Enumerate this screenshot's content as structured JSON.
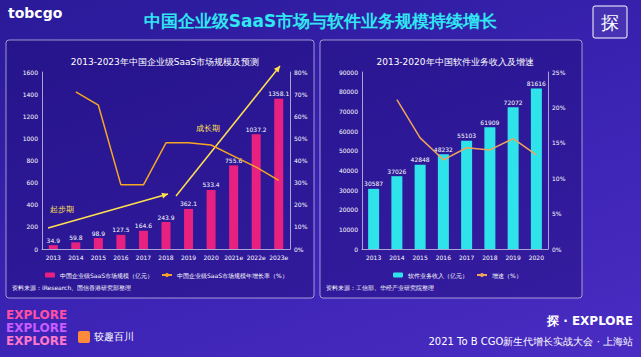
{
  "page": {
    "logo": "tobcgo",
    "title": "中国企业级SaaS市场与软件业务规模持续增长",
    "badge": "探",
    "footer_left": [
      "EXPLORE",
      "EXPLORE",
      "EXPLORE"
    ],
    "footer_brand": "较趣百川",
    "footer_right": [
      "探 · EXPLORE",
      "2021 To B CGO新生代增长实战大会 · 上海站"
    ]
  },
  "chart_data": [
    {
      "type": "bar",
      "title": "2013-2023年中国企业级SaaS市场规模及预测",
      "categories": [
        "2013",
        "2014",
        "2015",
        "2016",
        "2017",
        "2018",
        "2019",
        "2020",
        "2021e",
        "2022e",
        "2023e"
      ],
      "series": [
        {
          "name": "中国企业级SaaS市场规模（亿元）",
          "type": "bar",
          "color": "#e8207f",
          "data_labels": true,
          "values": [
            34.9,
            59.8,
            98.9,
            127.5,
            164.6,
            243.9,
            362.1,
            533.4,
            755.6,
            1037.2,
            1358.1
          ]
        },
        {
          "name": "中国企业级SaaS市场规模年增长率（%）",
          "type": "line",
          "axis": "y2",
          "color": "#f5a623",
          "marker": "none",
          "values": [
            null,
            71,
            65,
            29,
            29,
            48,
            48,
            47,
            42,
            37,
            31
          ]
        }
      ],
      "ylim": [
        0,
        1600
      ],
      "yticks": [
        0,
        200,
        400,
        600,
        800,
        1000,
        1200,
        1400,
        1600
      ],
      "y2lim": [
        0,
        80
      ],
      "y2ticks": [
        {
          "value": 0,
          "label": "0%"
        },
        {
          "value": 10,
          "label": "10%"
        },
        {
          "value": 20,
          "label": "20%"
        },
        {
          "value": 30,
          "label": "30%"
        },
        {
          "value": 40,
          "label": "40%"
        },
        {
          "value": 50,
          "label": "50%"
        },
        {
          "value": 60,
          "label": "60%"
        },
        {
          "value": 70,
          "label": "70%"
        },
        {
          "value": 80,
          "label": "80%"
        }
      ],
      "grid": false,
      "legend": "bottom",
      "annotations": [
        "起步期",
        "成长期"
      ],
      "source": "资料来源：iResearch、国信香港研究部整理"
    },
    {
      "type": "bar",
      "title": "2013-2020年中国软件业务收入及增速",
      "categories": [
        "2013",
        "2014",
        "2015",
        "2016",
        "2017",
        "2018",
        "2019",
        "2020"
      ],
      "series": [
        {
          "name": "软件业务收入（亿元）",
          "type": "bar",
          "color": "#2ee3ea",
          "data_labels": true,
          "values": [
            30587,
            37026,
            42848,
            48232,
            55103,
            61909,
            72072,
            81616
          ]
        },
        {
          "name": "增速（%）",
          "type": "line",
          "axis": "y2",
          "color": "#f0a35a",
          "marker": "none",
          "values": [
            null,
            21.1,
            15.7,
            12.6,
            14.3,
            14.0,
            15.6,
            13.3
          ]
        }
      ],
      "ylim": [
        0,
        90000
      ],
      "yticks": [
        0,
        10000,
        20000,
        30000,
        40000,
        50000,
        60000,
        70000,
        80000,
        90000
      ],
      "y2lim": [
        0,
        25
      ],
      "y2ticks": [
        {
          "value": 0,
          "label": "0%"
        },
        {
          "value": 5,
          "label": "5%"
        },
        {
          "value": 10,
          "label": "10%"
        },
        {
          "value": 15,
          "label": "15%"
        },
        {
          "value": 20,
          "label": "20%"
        },
        {
          "value": 25,
          "label": "25%"
        }
      ],
      "grid": false,
      "legend": "bottom",
      "source": "资料来源：工信部、华经产业研究院整理"
    }
  ]
}
